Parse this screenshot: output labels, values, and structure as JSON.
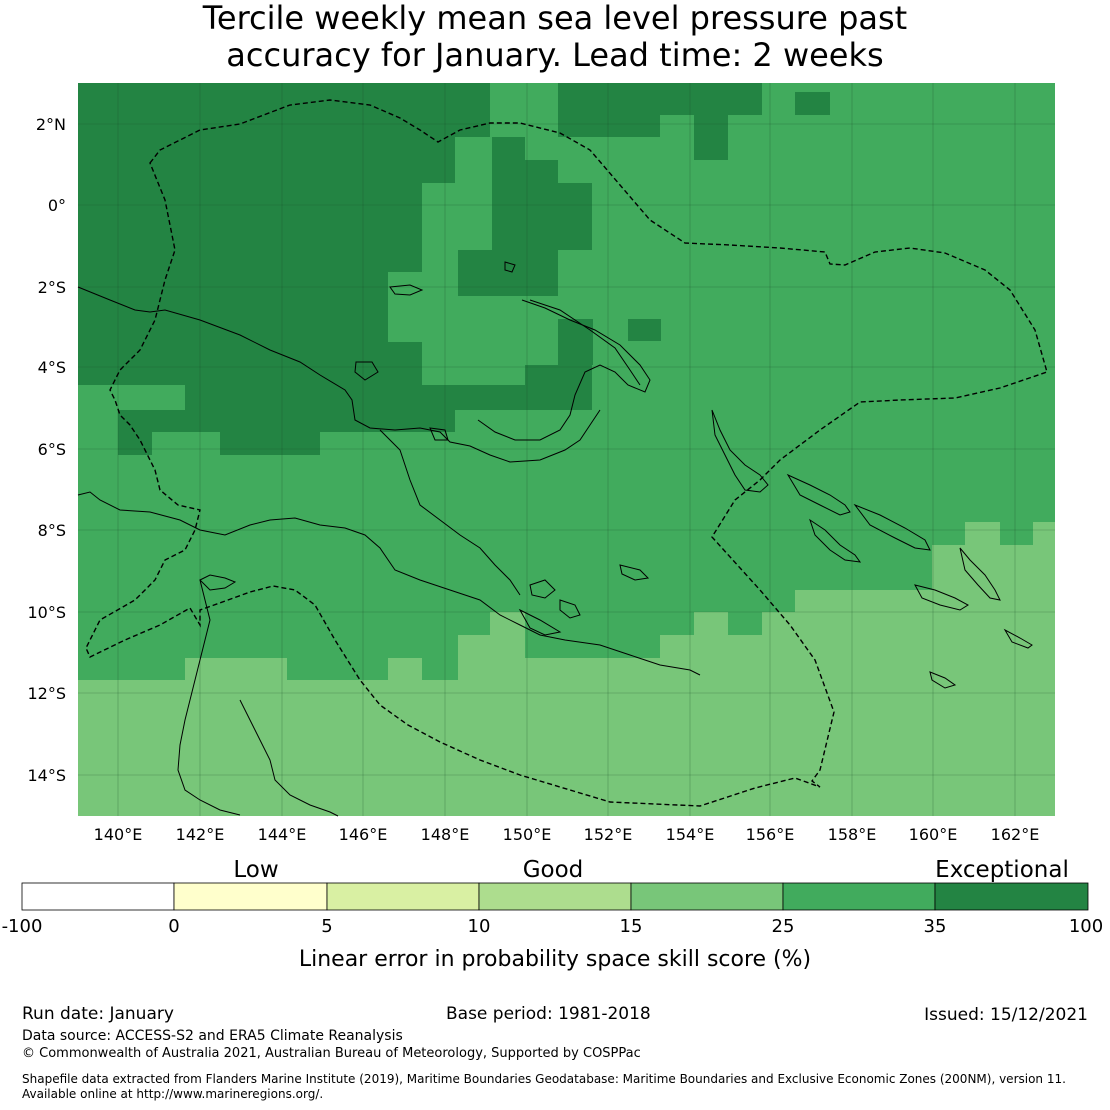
{
  "title": {
    "line1": "Tercile weekly mean sea level pressure past",
    "line2": "accuracy for January. Lead time: 2 weeks"
  },
  "map": {
    "lat_ticks": [
      "2°N",
      "0°",
      "2°S",
      "4°S",
      "6°S",
      "8°S",
      "10°S",
      "12°S",
      "14°S"
    ],
    "lon_ticks": [
      "140°E",
      "142°E",
      "144°E",
      "146°E",
      "148°E",
      "150°E",
      "152°E",
      "154°E",
      "156°E",
      "158°E",
      "160°E",
      "162°E"
    ],
    "colors": {
      "exceptional": "#238443",
      "good_high": "#41ab5d",
      "good_mid": "#78c679",
      "good_low": "#addd8e",
      "low_high": "#d9f0a3",
      "low": "#ffffcc",
      "none": "#ffffff"
    }
  },
  "colorbar": {
    "category_labels": [
      "Low",
      "Good",
      "Exceptional"
    ],
    "ticks": [
      "-100",
      "0",
      "5",
      "10",
      "15",
      "25",
      "35",
      "100"
    ],
    "segment_colors": [
      "#ffffff",
      "#ffffcc",
      "#d9f0a3",
      "#addd8e",
      "#78c679",
      "#41ab5d",
      "#238443"
    ],
    "label": "Linear error in probability space skill score (%)"
  },
  "footer": {
    "run_date": "Run date: January",
    "base_period": "Base period: 1981-2018",
    "issued": "Issued: 15/12/2021",
    "data_source": "Data source: ACCESS-S2 and ERA5 Climate Reanalysis",
    "copyright": "© Commonwealth of Australia 2021, Australian Bureau of Meteorology, Supported by COSPPac",
    "shapefile_line1": "Shapefile data extracted from Flanders Marine Institute (2019), Maritime Boundaries Geodatabase: Maritime Boundaries and Exclusive Economic Zones (200NM), version 11.",
    "shapefile_line2": "Available online at http://www.marineregions.org/."
  }
}
